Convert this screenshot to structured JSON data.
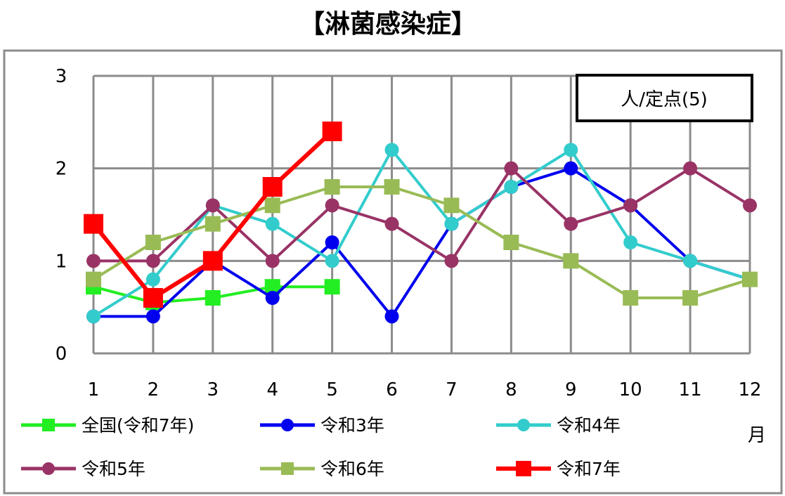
{
  "chart_data": {
    "type": "line",
    "title": "【淋菌感染症】",
    "unit_label": "人/定点(5)",
    "xlabel": "月",
    "ylabel": "",
    "ylim": [
      0,
      3
    ],
    "yticks": [
      "0",
      "1",
      "2",
      "3"
    ],
    "categories": [
      "1",
      "2",
      "3",
      "4",
      "5",
      "6",
      "7",
      "8",
      "9",
      "10",
      "11",
      "12"
    ],
    "grid": true,
    "legend_position": "bottom",
    "series": [
      {
        "name": "全国(令和7年)",
        "color": "#22ee22",
        "marker": "square",
        "values": [
          0.72,
          0.55,
          0.6,
          0.72,
          0.72,
          null,
          null,
          null,
          null,
          null,
          null,
          null
        ]
      },
      {
        "name": "令和3年",
        "color": "#0000ee",
        "marker": "circle",
        "values": [
          0.4,
          0.4,
          1.0,
          0.6,
          1.2,
          0.4,
          1.4,
          1.8,
          2.0,
          1.6,
          1.0,
          0.8
        ]
      },
      {
        "name": "令和4年",
        "color": "#33cccc",
        "marker": "circle",
        "values": [
          0.4,
          0.8,
          1.6,
          1.4,
          1.0,
          2.2,
          1.4,
          1.8,
          2.2,
          1.2,
          1.0,
          0.8
        ]
      },
      {
        "name": "令和5年",
        "color": "#993366",
        "marker": "circle",
        "values": [
          1.0,
          1.0,
          1.6,
          1.0,
          1.6,
          1.4,
          1.0,
          2.0,
          1.4,
          1.6,
          2.0,
          1.6
        ]
      },
      {
        "name": "令和6年",
        "color": "#99bb55",
        "marker": "square",
        "values": [
          0.8,
          1.2,
          1.4,
          1.6,
          1.8,
          1.8,
          1.6,
          1.2,
          1.0,
          0.6,
          0.6,
          0.8
        ]
      },
      {
        "name": "令和7年",
        "color": "#ff0000",
        "marker": "square",
        "values": [
          1.4,
          0.6,
          1.0,
          1.8,
          2.4,
          null,
          null,
          null,
          null,
          null,
          null,
          null
        ]
      }
    ]
  }
}
